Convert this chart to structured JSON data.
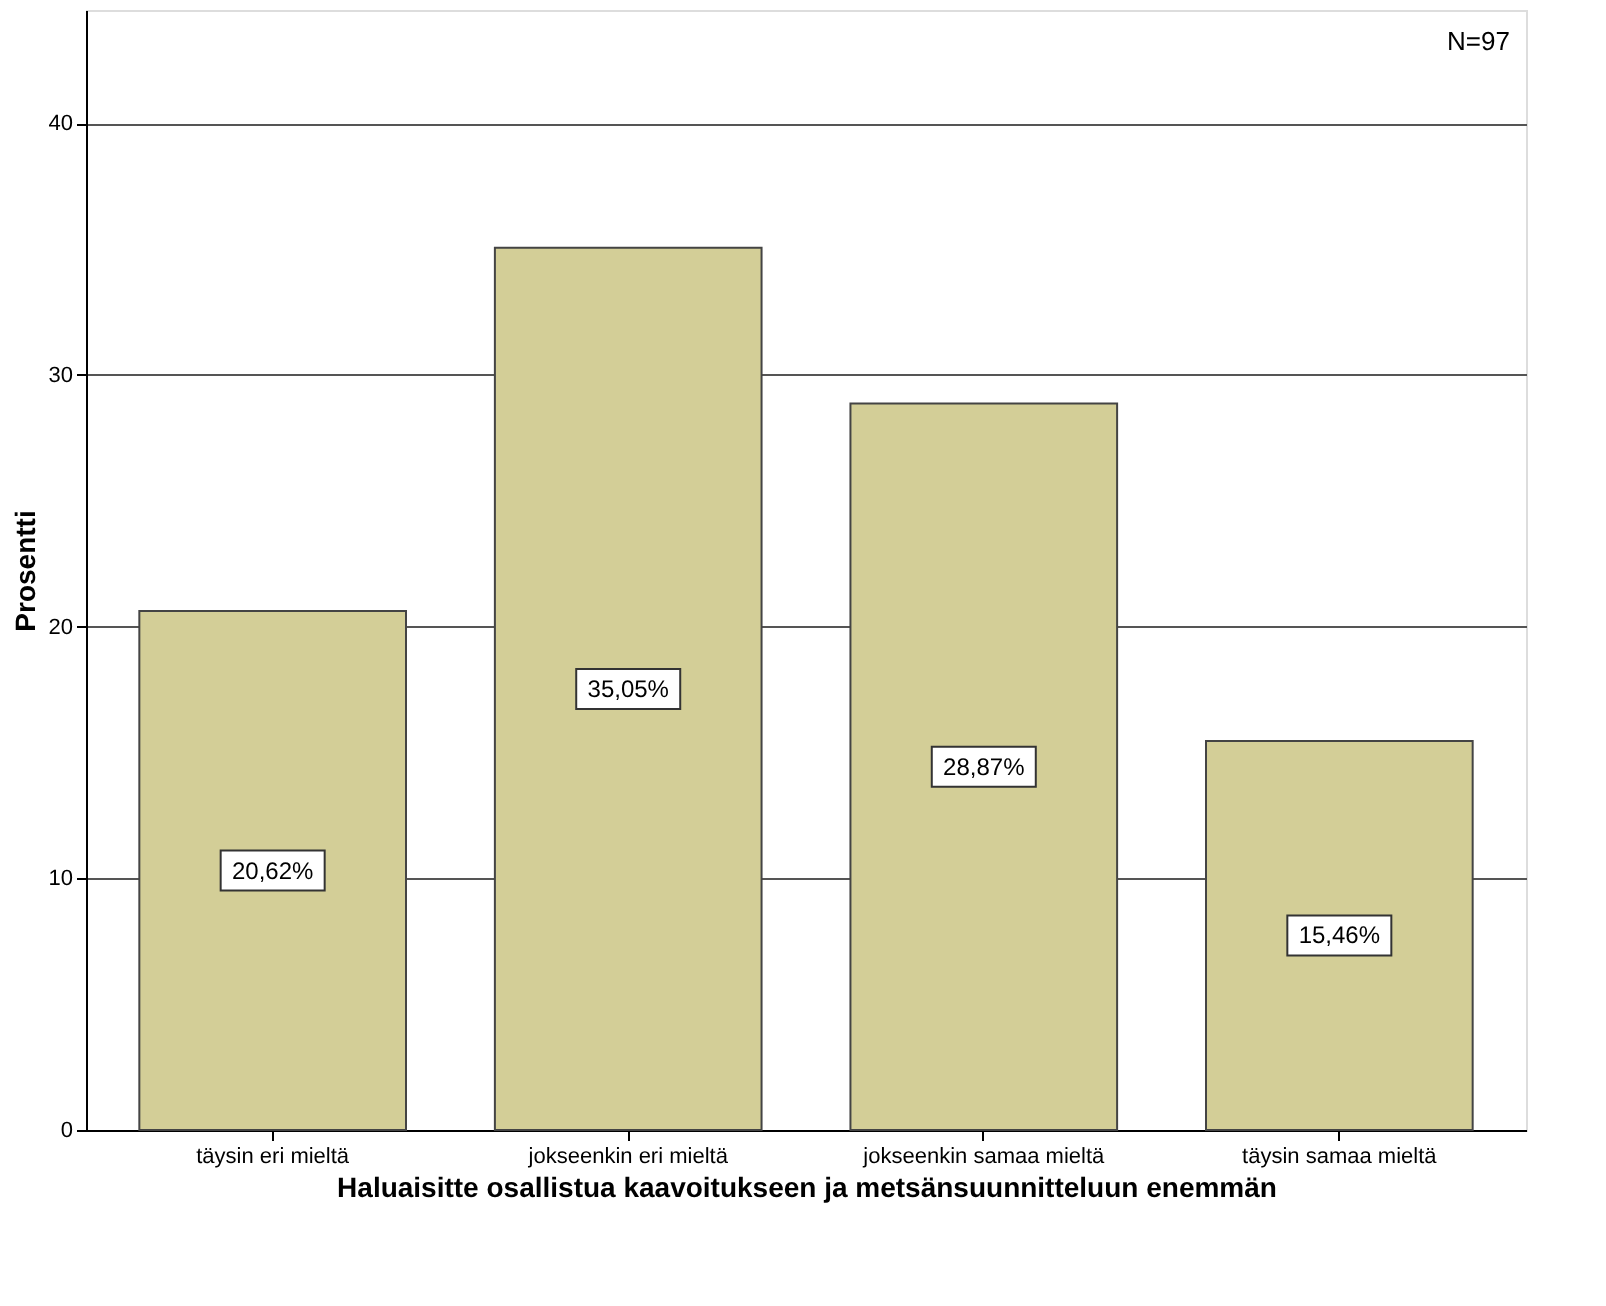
{
  "chart_data": {
    "type": "bar",
    "xlabel": "Haluaisitte osallistua kaavoitukseen ja metsänsuunnitteluun enemmän",
    "ylabel": "Prosentti",
    "categories": [
      "täysin eri mieltä",
      "jokseenkin eri mieltä",
      "jokseenkin samaa mieltä",
      "täysin samaa mieltä"
    ],
    "values": [
      20.62,
      35.05,
      28.87,
      15.46
    ],
    "value_labels": [
      "20,62%",
      "35,05%",
      "28,87%",
      "15,46%"
    ],
    "color": "#d3ce97",
    "ylim": [
      0,
      44.5
    ],
    "yticks": [
      0,
      10,
      20,
      30,
      40
    ],
    "grid": "y",
    "annotations": [
      "N=97"
    ]
  }
}
